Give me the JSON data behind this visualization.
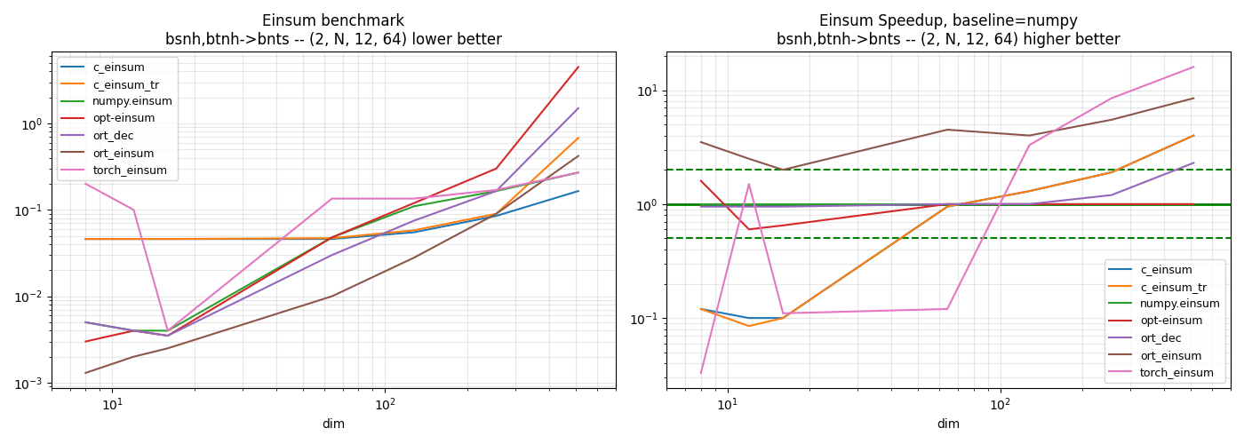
{
  "title1": "Einsum benchmark\nbsnh,btnh->bnts -- (2, N, 12, 64) lower better",
  "title2": "Einsum Speedup, baseline=numpy\nbsnh,btnh->bnts -- (2, N, 12, 64) higher better",
  "xlabel": "dim",
  "x_values": [
    8,
    12,
    16,
    64,
    128,
    256,
    512
  ],
  "series": {
    "c_einsum": {
      "color": "#1f77b4",
      "bench": [
        0.046,
        0.046,
        0.046,
        0.046,
        0.055,
        0.085,
        0.165
      ],
      "speedup": [
        0.12,
        0.1,
        0.1,
        0.95,
        1.3,
        1.9,
        4.0
      ]
    },
    "c_einsum_tr": {
      "color": "#ff7f0e",
      "bench": [
        0.046,
        0.046,
        0.046,
        0.047,
        0.058,
        0.09,
        0.68
      ],
      "speedup": [
        0.12,
        0.085,
        0.1,
        0.95,
        1.3,
        1.9,
        4.0
      ]
    },
    "numpy.einsum": {
      "color": "#2ca02c",
      "bench": [
        0.005,
        0.004,
        0.004,
        0.048,
        0.11,
        0.165,
        0.27
      ],
      "speedup": [
        1.0,
        1.0,
        1.0,
        1.0,
        1.0,
        1.0,
        1.0
      ]
    },
    "opt-einsum": {
      "color": "#d62728",
      "bench": [
        0.003,
        0.004,
        0.0035,
        0.048,
        0.12,
        0.3,
        4.5
      ],
      "speedup": [
        1.6,
        0.6,
        0.65,
        1.0,
        1.0,
        1.0,
        1.0
      ]
    },
    "ort_dec": {
      "color": "#9467bd",
      "bench": [
        0.005,
        0.004,
        0.0035,
        0.03,
        0.075,
        0.165,
        1.5
      ],
      "speedup": [
        0.95,
        0.95,
        0.95,
        1.0,
        1.0,
        1.2,
        2.3
      ]
    },
    "ort_einsum": {
      "color": "#8c564b",
      "bench": [
        0.0013,
        0.002,
        0.0025,
        0.01,
        0.028,
        0.09,
        0.42
      ],
      "speedup": [
        3.5,
        2.5,
        2.0,
        4.5,
        4.0,
        5.5,
        8.5
      ]
    },
    "torch_einsum": {
      "color": "#e377c2",
      "bench": [
        0.2,
        0.1,
        0.004,
        0.135,
        0.135,
        0.17,
        0.27
      ],
      "speedup": [
        0.033,
        1.5,
        0.11,
        0.12,
        3.3,
        8.5,
        16.0
      ]
    }
  },
  "dashed_lines": [
    2.0,
    0.5
  ],
  "baseline_line": 1.0
}
